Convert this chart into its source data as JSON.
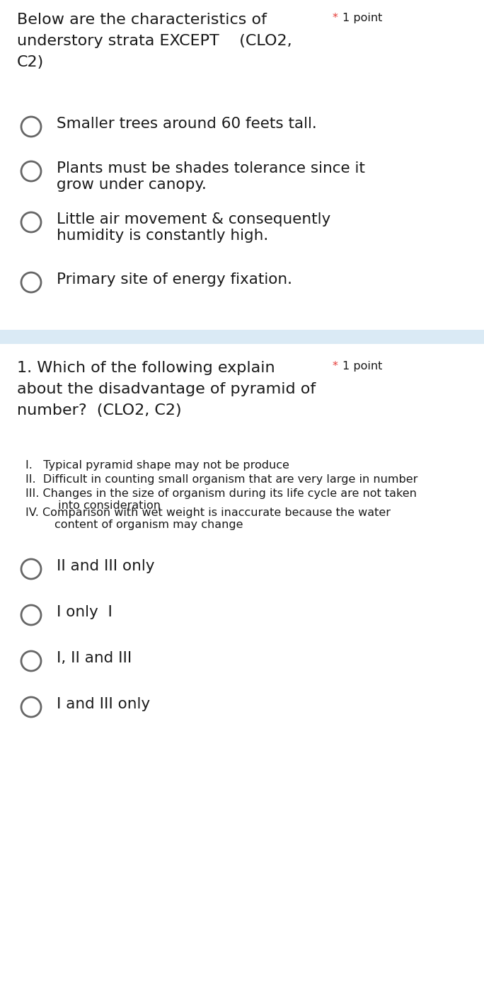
{
  "bg_color": "#ffffff",
  "divider_color": "#daeaf5",
  "text_color": "#1a1a1a",
  "star_color": "#e53935",
  "circle_color": "#666666",
  "fig_width": 6.84,
  "fig_height": 13.96,
  "dpi": 100,
  "q1": {
    "title_lines": [
      "Below are the characteristics of",
      "understory strata EXCEPT    (CLO2,",
      "C2)"
    ],
    "star_text": "1 point",
    "options": [
      "Smaller trees around 60 feets tall.",
      "Plants must be shades tolerance since it\ngrow under canopy.",
      "Little air movement & consequently\nhumidity is constantly high.",
      "Primary site of energy fixation."
    ]
  },
  "q2": {
    "title_lines": [
      "1. Which of the following explain",
      "about the disadvantage of pyramid of",
      "number?  (CLO2, C2)"
    ],
    "star_text": "1 point",
    "items": [
      "I.   Typical pyramid shape may not be produce",
      "II.  Difficult in counting small organism that are very large in number",
      "III. Changes in the size of organism during its life cycle are not taken\n         into consideration",
      "IV. Comparison with wet weight is inaccurate because the water\n        content of organism may change"
    ],
    "options": [
      "II and III only",
      "I only  I",
      "I, II and III",
      "I and III only"
    ]
  },
  "title_fontsize": 16,
  "star_fontsize": 11.5,
  "option_fontsize": 15.5,
  "item_fontsize": 11.5
}
